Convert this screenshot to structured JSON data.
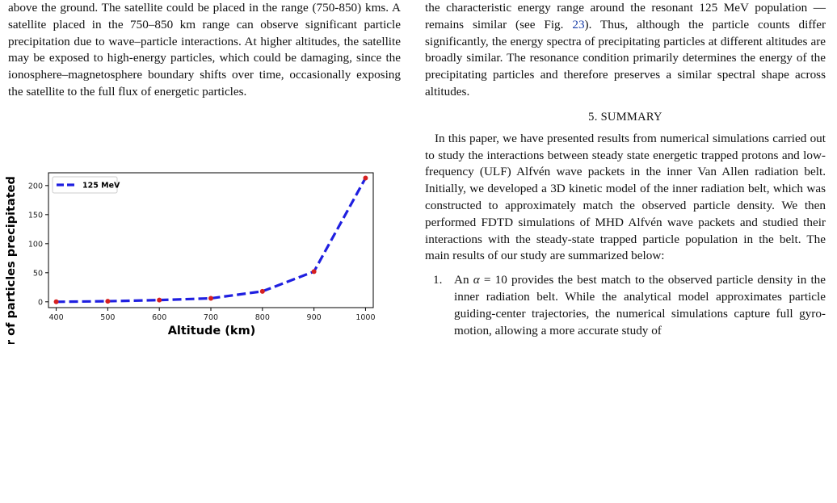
{
  "left_column": {
    "paragraph": "above the ground. The satellite could be placed in the range (750-850) kms. A satellite placed in the 750–850 km range can observe significant particle precipitation due to wave–particle interactions. At higher altitudes, the satellite may be exposed to high-energy particles, which could be damaging, since the ionosphere–magnetosphere boundary shifts over time, occasionally exposing the satellite to the full flux of energetic particles."
  },
  "right_column": {
    "paragraph1_before_link": "the characteristic energy range around the resonant 125 MeV population — remains similar (see Fig. ",
    "paragraph1_link": "23",
    "paragraph1_after_link": "). Thus, although the particle counts differ significantly, the energy spectra of precipitating particles at different altitudes are broadly similar. The resonance condition primarily determines the energy of the precipitating particles and therefore preserves a similar spectral shape across altitudes.",
    "section_heading": "5. SUMMARY",
    "summary_paragraph": "In this paper, we have presented results from numerical simulations carried out to study the interactions between steady state energetic trapped protons and low-frequency (ULF) Alfvén wave packets in the inner Van Allen radiation belt. Initially, we developed a 3D kinetic model of the inner radiation belt, which was constructed to approximately match the observed particle density. We then performed FDTD simulations of MHD Alfvén wave packets and studied their interactions with the steady-state trapped particle population in the belt. The main results of our study are summarized below:",
    "list_item1_number": "1.",
    "list_item1_prefix": "An ",
    "list_item1_alpha": "α",
    "list_item1_equals": " = 10",
    "list_item1_text": " provides the best match to the observed particle density in the inner radiation belt. While the analytical model approximates particle guiding-center trajectories, the numerical simulations capture full gyro-motion, allowing a more accurate study of"
  },
  "chart_data": {
    "type": "line",
    "xlabel": "Altitude (km)",
    "ylabel": "Number of particles precipitated",
    "x": [
      400,
      500,
      600,
      700,
      800,
      900,
      1000
    ],
    "series": [
      {
        "name": "125 MeV",
        "values": [
          0,
          1,
          3,
          6,
          18,
          52,
          213
        ],
        "color": "#1f1fe0",
        "marker_color": "#d62020"
      }
    ],
    "xticks": [
      "400",
      "500",
      "600",
      "700",
      "800",
      "900",
      "1000"
    ],
    "yticks": [
      "0",
      "50",
      "100",
      "150",
      "200"
    ],
    "xlim": [
      385,
      1015
    ],
    "ylim": [
      -10,
      222
    ],
    "legend_position": "top-left",
    "grid": false
  }
}
